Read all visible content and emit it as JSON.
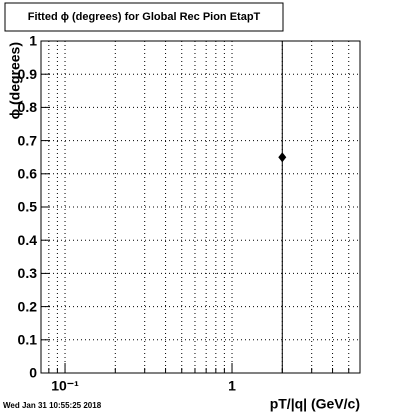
{
  "chart_data": {
    "type": "scatter",
    "title": "Fitted ϕ (degrees) for Global Rec Pion EtapT",
    "x_label": "pT/|q| (GeV/c)",
    "y_label": "ϕ (degrees)",
    "timestamp": "Wed Jan 31 10:55:25 2018",
    "x": [
      2
    ],
    "values": [
      0.65
    ],
    "errors": [
      0.65
    ],
    "color": "#000000",
    "xscale": "log",
    "xlim": [
      0.0718,
      5.84
    ],
    "xticks": [
      {
        "value": 0.1,
        "label": "10⁻¹"
      },
      1
    ],
    "xminorticks": [
      0.08,
      0.09,
      0.2,
      0.3,
      0.4,
      0.5,
      0.6,
      0.7,
      0.8,
      0.9,
      2,
      3,
      4,
      5
    ],
    "ylim": [
      0,
      1
    ],
    "yticks": [
      0,
      0.1,
      0.2,
      0.3,
      0.4,
      0.5,
      0.6,
      0.7,
      0.8,
      0.9,
      1
    ],
    "grid": true
  }
}
